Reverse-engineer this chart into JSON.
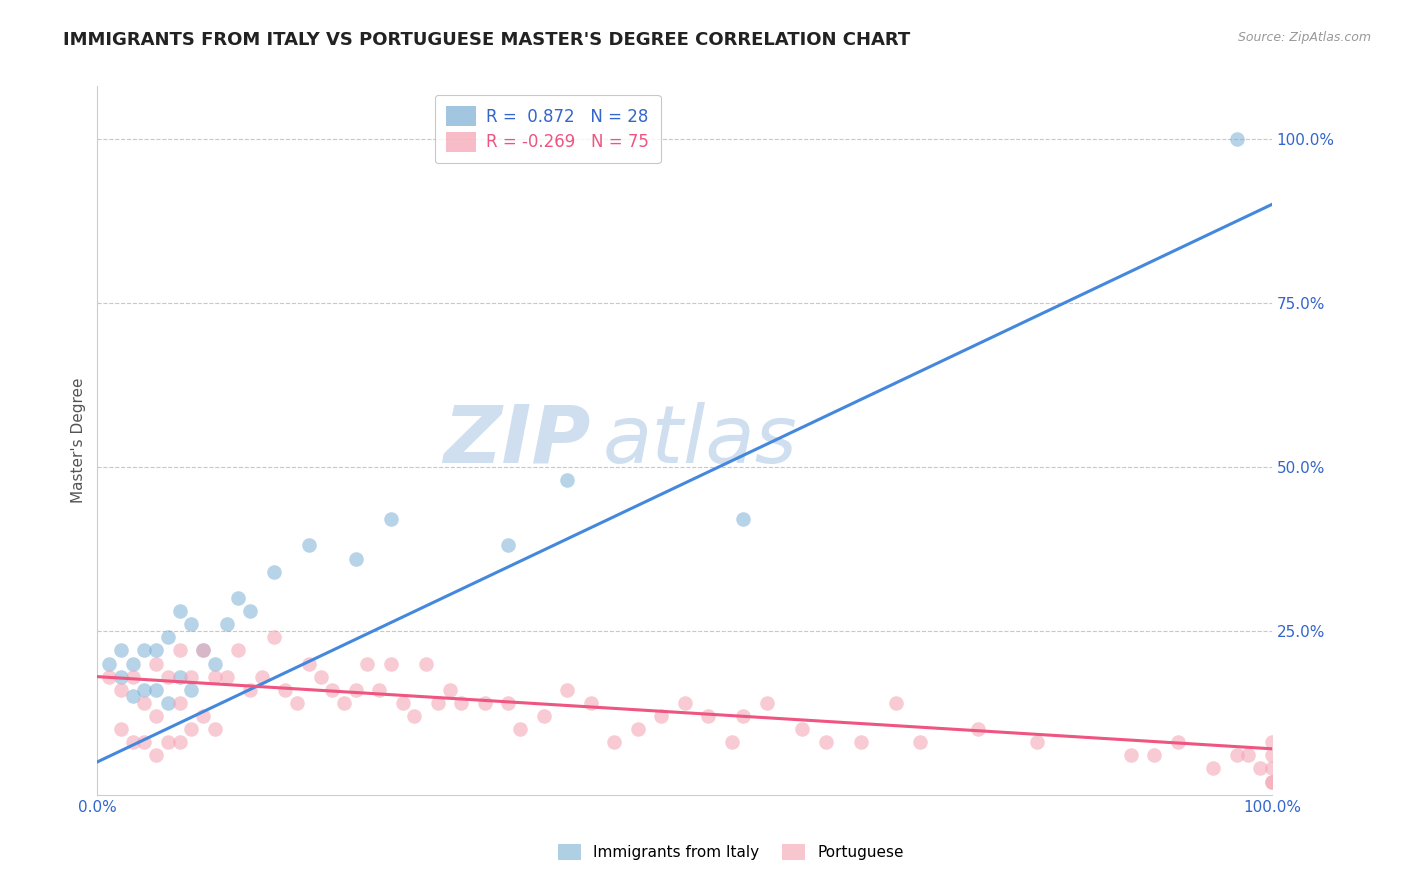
{
  "title": "IMMIGRANTS FROM ITALY VS PORTUGUESE MASTER'S DEGREE CORRELATION CHART",
  "source_text": "Source: ZipAtlas.com",
  "ylabel": "Master's Degree",
  "xlim": [
    0,
    100
  ],
  "ylim": [
    0,
    108
  ],
  "x_ticks": [
    0,
    100
  ],
  "x_tick_labels": [
    "0.0%",
    "100.0%"
  ],
  "y_ticks": [
    25,
    50,
    75,
    100
  ],
  "y_tick_labels": [
    "25.0%",
    "50.0%",
    "75.0%",
    "100.0%"
  ],
  "grid_color": "#c8c8c8",
  "background_color": "#ffffff",
  "blue_color": "#7bafd4",
  "pink_color": "#f4a0b0",
  "blue_line_color": "#4488dd",
  "pink_line_color": "#ee5580",
  "blue_R": 0.872,
  "blue_N": 28,
  "pink_R": -0.269,
  "pink_N": 75,
  "watermark_zip": "ZIP",
  "watermark_atlas": "atlas",
  "watermark_color": "#d0dff0",
  "legend_blue_label": "Immigrants from Italy",
  "legend_pink_label": "Portuguese",
  "blue_scatter_x": [
    1,
    2,
    2,
    3,
    3,
    4,
    4,
    5,
    5,
    6,
    6,
    7,
    7,
    8,
    8,
    9,
    10,
    11,
    12,
    13,
    15,
    18,
    22,
    25,
    35,
    40,
    55,
    97
  ],
  "blue_scatter_y": [
    20,
    22,
    18,
    20,
    15,
    22,
    16,
    22,
    16,
    24,
    14,
    28,
    18,
    26,
    16,
    22,
    20,
    26,
    30,
    28,
    34,
    38,
    36,
    42,
    38,
    48,
    42,
    100
  ],
  "pink_scatter_x": [
    1,
    2,
    2,
    3,
    3,
    4,
    4,
    5,
    5,
    5,
    6,
    6,
    7,
    7,
    7,
    8,
    8,
    9,
    9,
    10,
    10,
    11,
    12,
    13,
    14,
    15,
    16,
    17,
    18,
    19,
    20,
    21,
    22,
    23,
    24,
    25,
    26,
    27,
    28,
    29,
    30,
    31,
    33,
    35,
    36,
    38,
    40,
    42,
    44,
    46,
    48,
    50,
    52,
    54,
    55,
    57,
    60,
    62,
    65,
    68,
    70,
    75,
    80,
    88,
    90,
    92,
    95,
    97,
    98,
    99,
    100,
    100,
    100,
    100,
    100
  ],
  "pink_scatter_y": [
    18,
    16,
    10,
    18,
    8,
    14,
    8,
    20,
    12,
    6,
    18,
    8,
    22,
    14,
    8,
    18,
    10,
    22,
    12,
    18,
    10,
    18,
    22,
    16,
    18,
    24,
    16,
    14,
    20,
    18,
    16,
    14,
    16,
    20,
    16,
    20,
    14,
    12,
    20,
    14,
    16,
    14,
    14,
    14,
    10,
    12,
    16,
    14,
    8,
    10,
    12,
    14,
    12,
    8,
    12,
    14,
    10,
    8,
    8,
    14,
    8,
    10,
    8,
    6,
    6,
    8,
    4,
    6,
    6,
    4,
    2,
    4,
    6,
    2,
    8
  ],
  "blue_line_x0": 0,
  "blue_line_x1": 100,
  "blue_line_y0": 5,
  "blue_line_y1": 90,
  "pink_line_x0": 0,
  "pink_line_x1": 100,
  "pink_line_y0": 18,
  "pink_line_y1": 7,
  "title_color": "#222222",
  "axis_label_color": "#555555",
  "tick_color": "#3366cc",
  "pink_tick_color": "#ee5580",
  "title_fontsize": 13,
  "legend_fontsize": 12,
  "axis_tick_fontsize": 11,
  "source_fontsize": 9
}
